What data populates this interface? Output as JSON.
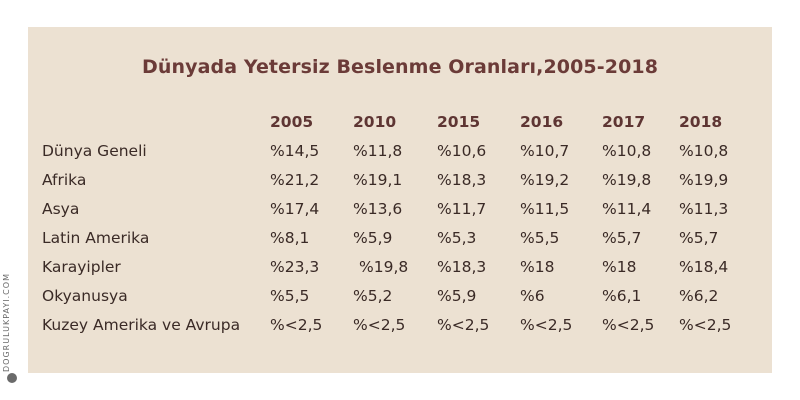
{
  "chart_data": {
    "type": "table",
    "title": "Dünyada Yetersiz Beslenme Oranları,2005-2018",
    "columns": [
      "2005",
      "2010",
      "2015",
      "2016",
      "2017",
      "2018"
    ],
    "rows": [
      {
        "label": "Dünya Geneli",
        "values": [
          "%14,5",
          "%11,8",
          "%10,6",
          "%10,7",
          "%10,8",
          "%10,8"
        ]
      },
      {
        "label": "Afrika",
        "values": [
          "%21,2",
          "%19,1",
          "%18,3",
          "%19,2",
          "%19,8",
          "%19,9"
        ]
      },
      {
        "label": "Asya",
        "values": [
          "%17,4",
          "%13,6",
          "%11,7",
          "%11,5",
          "%11,4",
          "%11,3"
        ]
      },
      {
        "label": "Latin Amerika",
        "values": [
          "%8,1",
          "%5,9",
          "%5,3",
          "%5,5",
          "%5,7",
          "%5,7"
        ]
      },
      {
        "label": "Karayipler",
        "values": [
          "%23,3",
          "%19,8",
          "%18,3",
          "%18",
          "%18",
          "%18,4"
        ]
      },
      {
        "label": "Okyanusya",
        "values": [
          "%5,5",
          "%5,2",
          "%5,9",
          "%6",
          "%6,1",
          "%6,2"
        ]
      },
      {
        "label": "Kuzey Amerika ve Avrupa",
        "values": [
          "%<2,5",
          "%<2,5",
          "%<2,5",
          "%<2,5",
          "%<2,5",
          "%<2,5"
        ]
      }
    ]
  },
  "credit": "DOGRULUKPAYI.COM",
  "colors": {
    "panel": "#ece1d2",
    "title": "#6b3b38",
    "text": "#3a2a26"
  }
}
